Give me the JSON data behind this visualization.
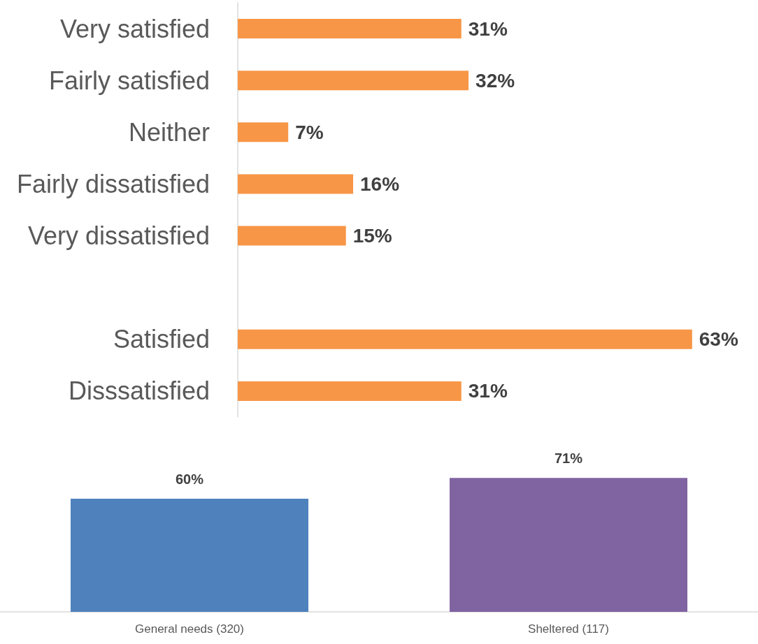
{
  "chart_data": [
    {
      "type": "bar",
      "orientation": "horizontal",
      "categories": [
        "Very satisfied",
        "Fairly satisfied",
        "Neither",
        "Fairly dissatisfied",
        "Very dissatisfied",
        null,
        "Satisfied",
        "Disssatisfied"
      ],
      "values": [
        31,
        32,
        7,
        16,
        15,
        null,
        63,
        31
      ],
      "value_labels": [
        "31%",
        "32%",
        "7%",
        "16%",
        "15%",
        null,
        "63%",
        "31%"
      ],
      "color": "#f79646",
      "tick_labels": "y"
    },
    {
      "type": "bar",
      "categories": [
        "General needs (320)",
        "Sheltered (117)"
      ],
      "values": [
        60,
        71
      ],
      "value_labels": [
        "60%",
        "71%"
      ],
      "colors": [
        "#4f81bd",
        "#8064a2"
      ],
      "tick_labels": "x"
    }
  ]
}
